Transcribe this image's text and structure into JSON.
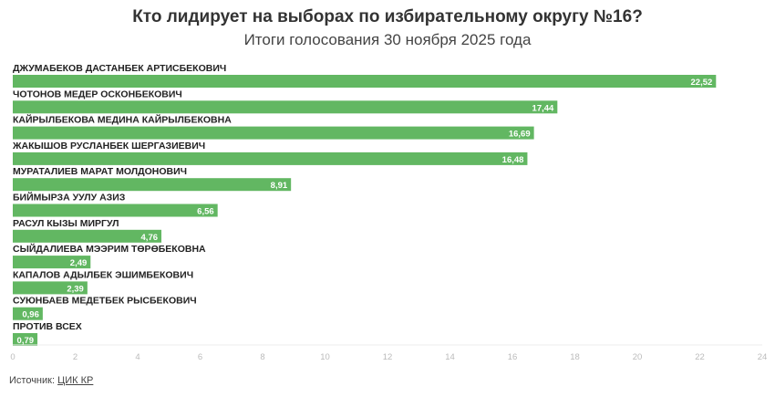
{
  "chart_data": {
    "type": "bar",
    "orientation": "horizontal",
    "title": "Кто лидирует на выборах по избирательному округу №16?",
    "subtitle": "Итоги голосования 30 ноября 2025 года",
    "categories": [
      "ДЖУМАБЕКОВ ДАСТАНБЕК АРТИСБЕКОВИЧ",
      "ЧОТОНОВ МЕДЕР ОСКОНБЕКОВИЧ",
      "КАЙРЫЛБЕКОВА МЕДИНА КАЙРЫЛБЕКОВНА",
      "ЖАКЫШОВ РУСЛАНБЕК ШЕРГАЗИЕВИЧ",
      "МУРАТАЛИЕВ МАРАТ МОЛДОНОВИЧ",
      "БИЙМЫРЗА УУЛУ АЗИЗ",
      "РАСУЛ КЫЗЫ МИРГУЛ",
      "СЫЙДАЛИЕВА МЭЭРИМ ТӨРӨБЕКОВНА",
      "КАПАЛОВ АДЫЛБЕК ЭШИМБЕКОВИЧ",
      "СУЮНБАЕВ МЕДЕТБЕК РЫСБЕКОВИЧ",
      "ПРОТИВ ВСЕХ"
    ],
    "values": [
      22.52,
      17.44,
      16.69,
      16.48,
      8.91,
      6.56,
      4.76,
      2.49,
      2.39,
      0.96,
      0.79
    ],
    "value_labels": [
      "22,52",
      "17,44",
      "16,69",
      "16,48",
      "8,91",
      "6,56",
      "4,76",
      "2,49",
      "2,39",
      "0,96",
      "0,79"
    ],
    "xlim": [
      0,
      24
    ],
    "xticks": [
      0,
      2,
      4,
      6,
      8,
      10,
      12,
      14,
      16,
      18,
      20,
      22,
      24
    ],
    "grid": false,
    "legend": "none",
    "bar_color": "#62b762"
  },
  "footer": {
    "source_label": "Источник:",
    "source_link": "ЦИК КР"
  }
}
